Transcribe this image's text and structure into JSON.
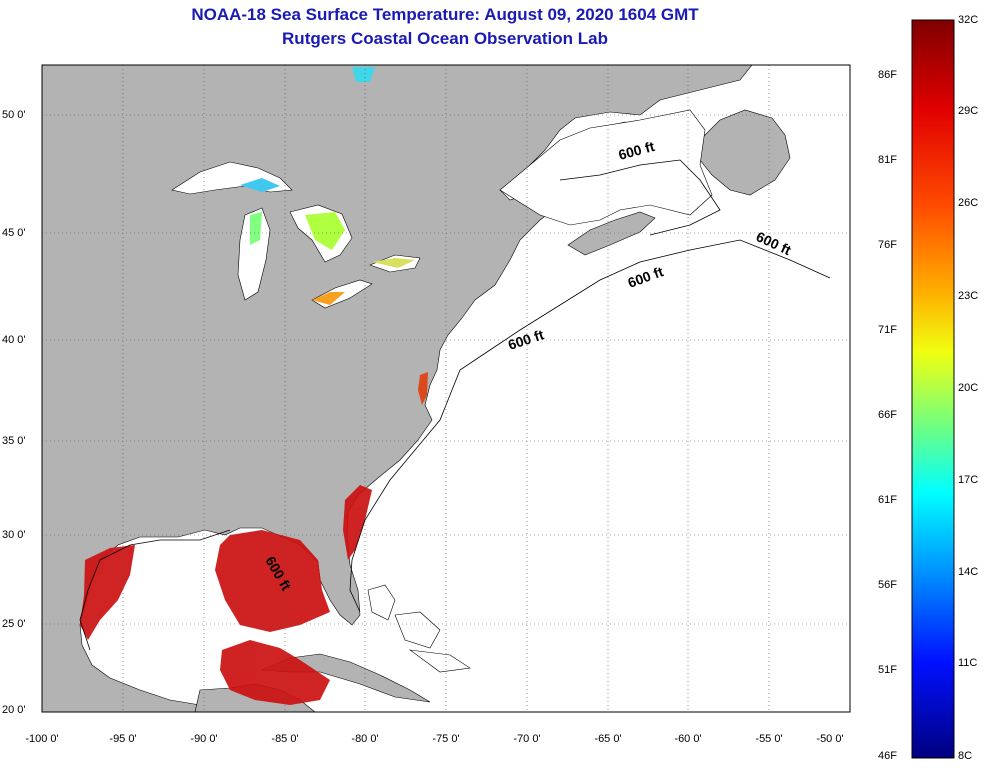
{
  "header": {
    "title": "NOAA-18 Sea Surface Temperature:  August 09, 2020 1604 GMT",
    "subtitle": "Rutgers Coastal Ocean Observation Lab"
  },
  "map": {
    "lon_range": [
      -100,
      -50
    ],
    "lat_range": [
      20,
      52.5
    ],
    "lat_ticks": [
      "50 0'",
      "45 0'",
      "40 0'",
      "35 0'",
      "30 0'",
      "25 0'",
      "20 0'"
    ],
    "lon_ticks": [
      "-100 0'",
      "-95 0'",
      "-90 0'",
      "-85 0'",
      "-80 0'",
      "-75 0'",
      "-70 0'",
      "-65 0'",
      "-60 0'",
      "-55 0'",
      "-50 0'"
    ],
    "isobath_labels": [
      "600 ft",
      "600 ft",
      "600 ft",
      "600 ft",
      "600 ft"
    ],
    "land_color": "#b3b3b3",
    "ocean_color": "#ffffff"
  },
  "colorbar": {
    "celsius_labels": [
      "32C",
      "29C",
      "26C",
      "23C",
      "20C",
      "17C",
      "14C",
      "11C",
      "8C"
    ],
    "fahrenheit_labels": [
      "86F",
      "81F",
      "76F",
      "71F",
      "66F",
      "61F",
      "56F",
      "51F",
      "46F"
    ]
  }
}
